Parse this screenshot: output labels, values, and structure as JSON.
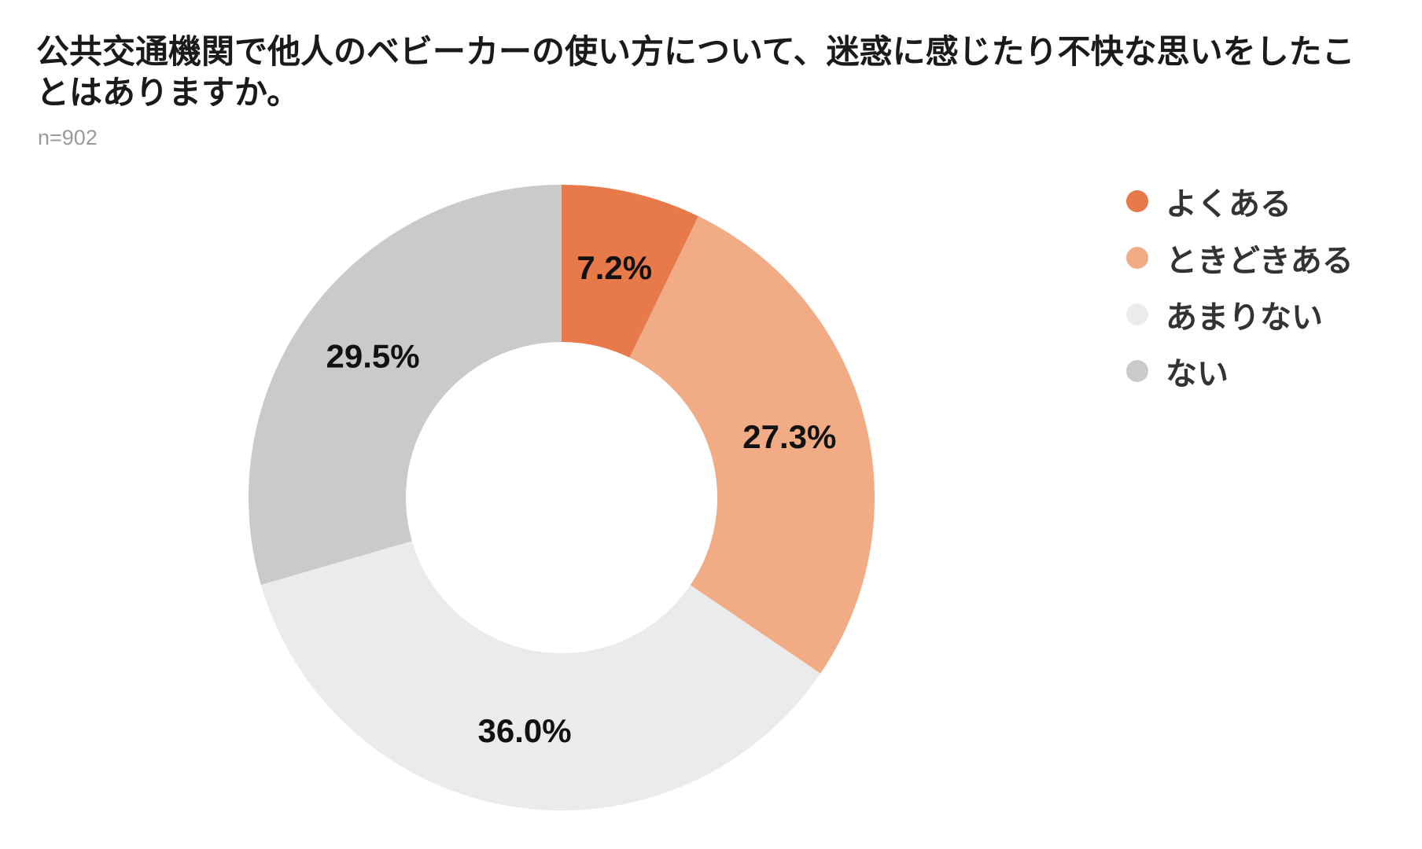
{
  "title": "公共交通機関で他人のベビーカーの使い方について、迷惑に感じたり不快な思いをしたことはありますか。",
  "sample_size": "n=902",
  "chart_data": {
    "type": "pie",
    "donut": true,
    "series": [
      {
        "name": "よくある",
        "value": 7.2,
        "label": "7.2%",
        "color": "#e8794a"
      },
      {
        "name": "ときどきある",
        "value": 27.3,
        "label": "27.3%",
        "color": "#f1ac86"
      },
      {
        "name": "あまりない",
        "value": 36.0,
        "label": "36.0%",
        "color": "#ebebeb"
      },
      {
        "name": "ない",
        "value": 29.5,
        "label": "29.5%",
        "color": "#cacaca"
      }
    ],
    "legend_position": "top-right"
  }
}
